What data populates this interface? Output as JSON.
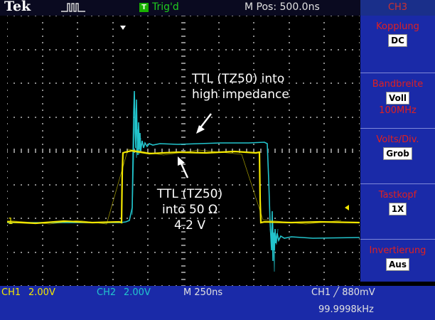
{
  "header": {
    "brand": "Tek",
    "trigger_status_box": "T",
    "trigger_status": "Trig'd",
    "main_position": "M Pos: 500.0ns"
  },
  "side_menu": {
    "title": "CH3",
    "items": [
      {
        "label": "Kopplung",
        "value": "DC",
        "sub": ""
      },
      {
        "label": "Bandbreite",
        "value": "Voll",
        "sub": "100MHz"
      },
      {
        "label": "Volts/Div.",
        "value": "Grob",
        "sub": ""
      },
      {
        "label": "Tastkopf",
        "value": "1X",
        "sub": ""
      },
      {
        "label": "Invertierung",
        "value": "Aus",
        "sub": ""
      }
    ]
  },
  "footer": {
    "ch1": "CH1",
    "ch1_scale": "2.00V",
    "ch2": "CH2",
    "ch2_scale": "2.00V",
    "timebase": "M 250ns",
    "trigger": "CH1 ╱ 880mV",
    "frequency": "99.9998kHz"
  },
  "annotations": {
    "cyan_line1": "TTL (TZ50) into",
    "cyan_line2": "high impedance",
    "yellow_line1": "TTL (TZ50)",
    "yellow_line2": "into 50 Ω",
    "yellow_line3": "4.2 V"
  },
  "markers": {
    "ground_ch1": "1"
  },
  "colors": {
    "ch1_trace": "#f2e600",
    "ch2_trace": "#22c4cc",
    "menu_bg": "#1a2aa8",
    "menu_label": "#e02020"
  }
}
